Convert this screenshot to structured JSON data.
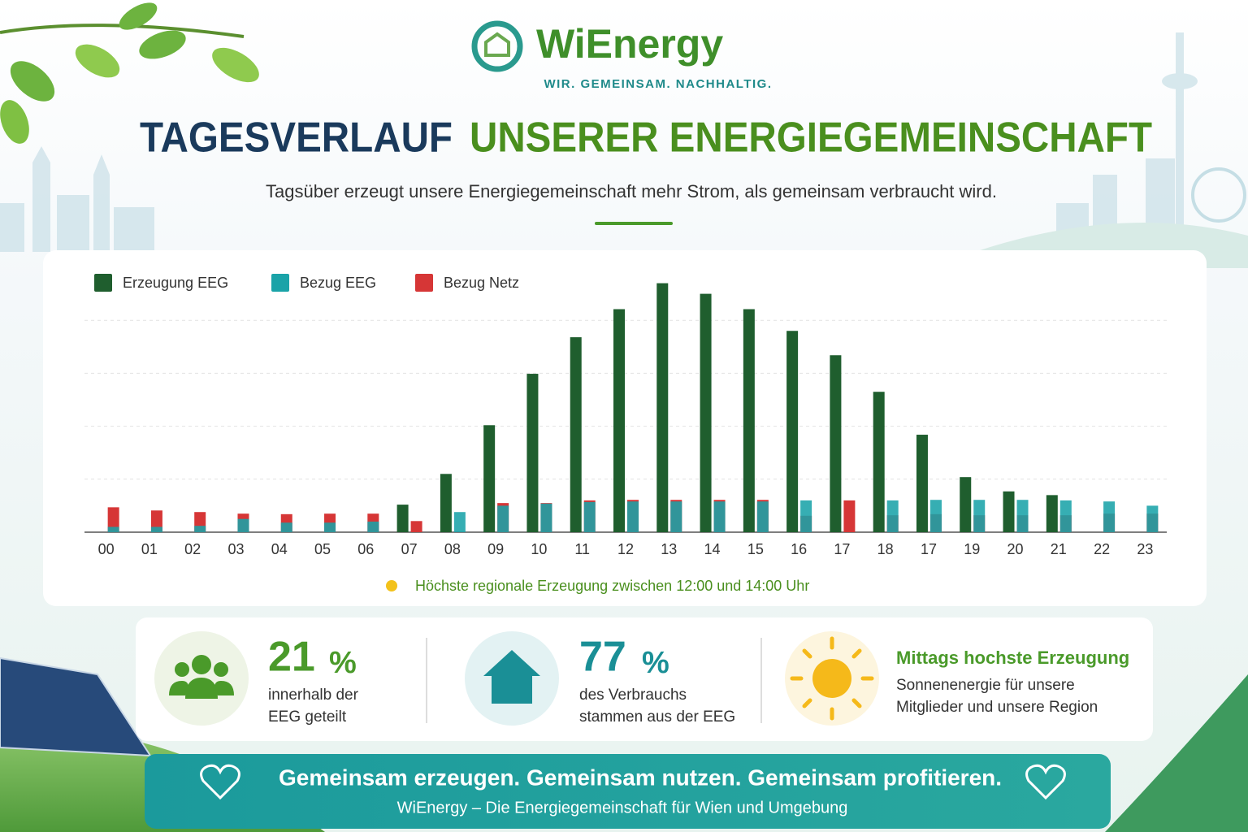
{
  "header": {
    "brand": "WiEnergy",
    "tagline": "WIR. GEMEINSAM. NACHHALTIG.",
    "title_part1": "TAGESVERLAUF",
    "title_part2": "UNSERER ENERGIEGEMEINSCHAFT",
    "subtitle": "Tagsüber erzeugt unsere Energiegemeinschaft mehr Strom, als gemeinsam verbraucht wird."
  },
  "chart_data": {
    "type": "bar",
    "categories": [
      "00",
      "01",
      "02",
      "03",
      "04",
      "05",
      "06",
      "07",
      "08",
      "09",
      "10",
      "11",
      "12",
      "13",
      "14",
      "15",
      "16",
      "17",
      "18",
      "17",
      "19",
      "20",
      "21",
      "22",
      "23"
    ],
    "series": [
      {
        "name": "Erzeugung EEG",
        "color": "#1f5e2e",
        "values": [
          0,
          0,
          0,
          0,
          0,
          0,
          0,
          0.52,
          1.1,
          2.02,
          2.99,
          3.68,
          4.21,
          4.7,
          4.5,
          4.21,
          3.8,
          3.34,
          2.65,
          1.84,
          1.04,
          0.77,
          0.7,
          0,
          0
        ]
      },
      {
        "name": "Bezug EEG",
        "color": "#1aa3a8",
        "values": [
          0.1,
          0.1,
          0.12,
          0.25,
          0.18,
          0.18,
          0.2,
          0,
          0.38,
          0.5,
          0.54,
          0.57,
          0.58,
          0.58,
          0.58,
          0.58,
          0.6,
          0,
          0.6,
          0.61,
          0.61,
          0.61,
          0.6,
          0.58,
          0.5
        ]
      },
      {
        "name": "Bezug Netz",
        "color": "#d63636",
        "values": [
          0.47,
          0.41,
          0.38,
          0.35,
          0.34,
          0.35,
          0.35,
          0.21,
          0,
          0.55,
          0.55,
          0.6,
          0.61,
          0.61,
          0.61,
          0.61,
          0.31,
          0.6,
          0.32,
          0.34,
          0.32,
          0.32,
          0.32,
          0.35,
          0.35
        ]
      }
    ],
    "ylim": [
      0,
      5
    ],
    "yticks": [
      0,
      1,
      2,
      3,
      4
    ],
    "grid": true,
    "legend": "top-left",
    "annotation": "Höchste regionale Erzeugung zwischen 12:00 und 14:00 Uhr"
  },
  "stats": [
    {
      "value": "21",
      "unit": "%",
      "lines": [
        "innerhalb der",
        "EEG geteilt"
      ]
    },
    {
      "value": "77",
      "unit": "%",
      "lines": [
        "des Verbrauchs",
        "stammen aus der EEG"
      ]
    },
    {
      "title": "Mittags hochste Erzeugung",
      "lines": [
        "Sonnenenergie für unsere",
        "Mitglieder und unsere Region"
      ]
    }
  ],
  "footer": {
    "slogan": "Gemeinsam erzeugen. Gemeinsam nutzen. Gemeinsam profitieren.",
    "note": "WiEnergy – Die Energiegemeinschaft für Wien und Umgebung"
  }
}
